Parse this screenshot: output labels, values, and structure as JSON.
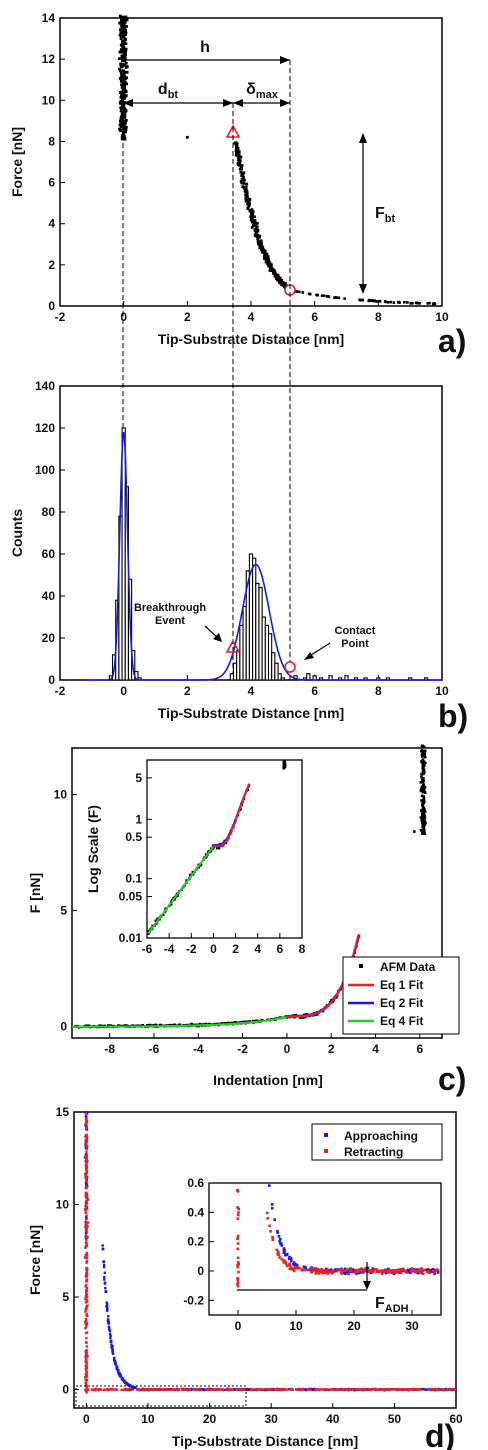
{
  "colors": {
    "red": "#e8202a",
    "blue": "#1a1ae6",
    "green": "#22d022",
    "black": "#000000"
  },
  "chart_data": [
    {
      "type": "scatter",
      "panel_label": "a)",
      "xlabel": "Tip-Substrate Distance [nm]",
      "ylabel": "Force [nN]",
      "xlim": [
        -2,
        10
      ],
      "ylim": [
        0,
        14
      ],
      "xticks": [
        "-2",
        "0",
        "2",
        "4",
        "6",
        "8",
        "10"
      ],
      "yticks": [
        "0",
        "2",
        "4",
        "6",
        "8",
        "10",
        "12",
        "14"
      ],
      "annotations": {
        "h": "h",
        "dbt_main": "d",
        "dbt_sub": "bt",
        "delta_main": "δ",
        "delta_sub": "max",
        "fbt_main": "F",
        "fbt_sub": "bt"
      },
      "markers": {
        "breakthrough": [
          3.45,
          8.2
        ],
        "contact": [
          5.25,
          0.75
        ]
      },
      "series": [
        {
          "values": [
            [
              0,
              8.2
            ],
            [
              0,
              14
            ],
            [
              2,
              8.2
            ],
            [
              3.45,
              8.2
            ],
            [
              3.8,
              6.5
            ],
            [
              4.1,
              4.2
            ],
            [
              4.4,
              2.5
            ],
            [
              4.8,
              1.4
            ],
            [
              5.25,
              0.75
            ],
            [
              6,
              0.55
            ],
            [
              7,
              0.35
            ],
            [
              8,
              0.25
            ],
            [
              9,
              0.1
            ],
            [
              10,
              0.05
            ]
          ]
        }
      ]
    },
    {
      "type": "bar",
      "panel_label": "b)",
      "xlabel": "Tip-Substrate Distance [nm]",
      "ylabel": "Counts",
      "xlim": [
        -2,
        10
      ],
      "ylim": [
        0,
        140
      ],
      "xticks": [
        "-2",
        "0",
        "2",
        "4",
        "6",
        "8",
        "10"
      ],
      "yticks": [
        "0",
        "20",
        "40",
        "60",
        "80",
        "100",
        "120",
        "140"
      ],
      "annotations": {
        "breakthrough": [
          "Breakthrough",
          "Event"
        ],
        "contact": [
          "Contact",
          "Point"
        ]
      },
      "bins": [
        [
          -0.4,
          2
        ],
        [
          -0.3,
          12
        ],
        [
          -0.2,
          38
        ],
        [
          -0.1,
          78
        ],
        [
          0,
          120
        ],
        [
          0.1,
          92
        ],
        [
          0.2,
          48
        ],
        [
          0.3,
          14
        ],
        [
          0.4,
          4
        ],
        [
          0.5,
          1
        ],
        [
          3.4,
          3
        ],
        [
          3.5,
          8
        ],
        [
          3.6,
          14
        ],
        [
          3.7,
          26
        ],
        [
          3.8,
          35
        ],
        [
          3.9,
          52
        ],
        [
          4.0,
          60
        ],
        [
          4.1,
          58
        ],
        [
          4.2,
          46
        ],
        [
          4.3,
          44
        ],
        [
          4.4,
          30
        ],
        [
          4.5,
          26
        ],
        [
          4.6,
          22
        ],
        [
          4.7,
          13
        ],
        [
          4.8,
          8
        ],
        [
          4.9,
          3
        ],
        [
          5.0,
          1
        ],
        [
          5.4,
          2
        ],
        [
          5.7,
          1
        ],
        [
          5.8,
          3
        ],
        [
          6.0,
          2
        ],
        [
          6.2,
          1
        ],
        [
          6.5,
          2
        ],
        [
          6.8,
          1
        ],
        [
          7.0,
          2
        ],
        [
          7.3,
          1
        ],
        [
          7.6,
          1
        ],
        [
          8.0,
          1
        ],
        [
          8.3,
          1
        ],
        [
          9.0,
          1
        ],
        [
          9.5,
          1
        ]
      ],
      "fits": [
        {
          "mu": 0.0,
          "sigma": 0.12,
          "amp": 118
        },
        {
          "mu": 4.15,
          "sigma": 0.42,
          "amp": 55
        }
      ],
      "markers": {
        "breakthrough": [
          3.45,
          16
        ],
        "contact": [
          5.25,
          6
        ]
      }
    },
    {
      "type": "line",
      "panel_label": "c)",
      "xlabel": "Indentation [nm]",
      "ylabel": "F [nN]",
      "xlim": [
        -9.7,
        7
      ],
      "ylim": [
        -0.5,
        12
      ],
      "xticks": [
        "-8",
        "-6",
        "-4",
        "-2",
        "0",
        "2",
        "4",
        "6"
      ],
      "yticks": [
        "0",
        "5",
        "10"
      ],
      "legend": [
        "AFM Data",
        "Eq 1 Fit",
        "Eq 2 Fit",
        "Eq 4 Fit"
      ],
      "inset": {
        "ylabel": "Log Scale (F)",
        "xlim": [
          -6,
          8
        ],
        "ylim_log": [
          0.01,
          10
        ],
        "xticks": [
          "-6",
          "-4",
          "-2",
          "0",
          "2",
          "4",
          "6",
          "8"
        ],
        "yticks": [
          "0.01",
          "0.05",
          "0.1",
          "0.5",
          "1",
          "5"
        ]
      }
    },
    {
      "type": "scatter",
      "panel_label": "d)",
      "xlabel": "Tip-Substrate Distance [nm]",
      "ylabel": "Force [nN]",
      "xlim": [
        -2,
        60
      ],
      "ylim": [
        -1,
        15
      ],
      "xticks": [
        "0",
        "10",
        "20",
        "30",
        "40",
        "50",
        "60"
      ],
      "yticks": [
        "0",
        "5",
        "10",
        "15"
      ],
      "legend": [
        "Approaching",
        "Retracting"
      ],
      "inset": {
        "xlim": [
          -5,
          35
        ],
        "ylim": [
          -0.3,
          0.6
        ],
        "xticks": [
          "0",
          "10",
          "20",
          "30"
        ],
        "yticks": [
          "-0.2",
          "0",
          "0.2",
          "0.4",
          "0.6"
        ],
        "annotation": {
          "main": "F",
          "sub": "ADH"
        }
      }
    }
  ]
}
